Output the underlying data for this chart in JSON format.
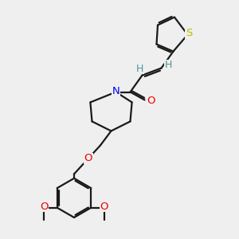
{
  "background_color": "#efefef",
  "bond_color": "#1a1a1a",
  "N_color": "#0000ee",
  "O_color": "#ee0000",
  "S_color": "#bbbb00",
  "H_color": "#4a9696",
  "line_width": 1.6,
  "figsize": [
    3.0,
    3.0
  ],
  "dpi": 100,
  "xlim": [
    0,
    10
  ],
  "ylim": [
    0,
    10
  ]
}
